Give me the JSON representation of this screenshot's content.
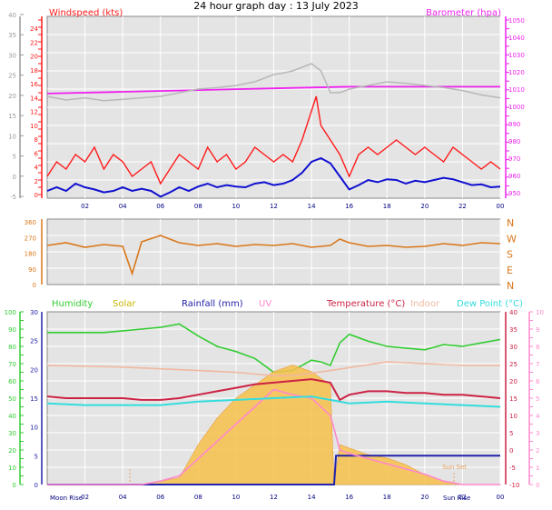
{
  "title": "24 hour graph day : 13 July 2023",
  "colors": {
    "gray_axis": "#9a9a9a",
    "windspeed": "#ff1a1a",
    "wind_avg": "#1010d0",
    "gust_gray": "#b8b8b8",
    "barometer": "#ee22ee",
    "direction": "#d9771a",
    "humidity": "#33cc33",
    "solar": "#c8b400",
    "rainfall": "#2222aa",
    "uv": "#ff88cc",
    "temperature": "#cc2244",
    "indoor": "#f0b8a0",
    "dewpoint": "#33dddd",
    "solar_fill": "#f7c14b"
  },
  "chart_data": [
    {
      "id": "wind",
      "type": "line",
      "title": "Windspeed (kts)",
      "title_right": "Barometer (hpa)",
      "x_ticks": [
        "02",
        "04",
        "06",
        "08",
        "10",
        "12",
        "14",
        "16",
        "18",
        "20",
        "22",
        "00"
      ],
      "left_outer_ticks": [
        "40",
        "35",
        "30",
        "25",
        "20",
        "15",
        "10",
        "5",
        "0",
        "-5"
      ],
      "left_inner_ticks": [
        "24",
        "22",
        "20",
        "18",
        "16",
        "14",
        "12",
        "10",
        "8",
        "6",
        "4",
        "2",
        "0"
      ],
      "right_ticks": [
        "1050",
        "1040",
        "1030",
        "1020",
        "1010",
        "1000",
        "990",
        "980",
        "970",
        "960",
        "950"
      ],
      "right_inner_ticks": [
        "980",
        "970",
        "960",
        "950"
      ],
      "ylim": [
        0,
        25
      ],
      "y2lim": [
        945,
        1051
      ],
      "series": [
        {
          "name": "Windspeed (kts)",
          "role": "speed",
          "x": [
            0,
            0.5,
            1,
            1.5,
            2,
            2.5,
            3,
            3.5,
            4,
            4.5,
            5,
            5.5,
            6,
            6.5,
            7,
            7.5,
            8,
            8.5,
            9,
            9.5,
            10,
            10.5,
            11,
            11.5,
            12,
            12.5,
            13,
            13.5,
            14,
            14.25,
            14.5,
            15,
            15.5,
            16,
            16.5,
            17,
            17.5,
            18,
            18.5,
            19,
            19.5,
            20,
            20.5,
            21,
            21.5,
            22,
            22.5,
            23,
            23.5,
            24
          ],
          "y": [
            3,
            5,
            4,
            6,
            5,
            7,
            4,
            6,
            5,
            3,
            4,
            5,
            2,
            4,
            6,
            5,
            4,
            7,
            5,
            6,
            4,
            5,
            7,
            6,
            5,
            6,
            5,
            8,
            12,
            14,
            10,
            8,
            6,
            3,
            6,
            7,
            6,
            7,
            8,
            7,
            6,
            7,
            6,
            5,
            7,
            6,
            5,
            4,
            5,
            4
          ]
        },
        {
          "name": "Average wind (kts)",
          "role": "avg",
          "x": [
            0,
            0.5,
            1,
            1.5,
            2,
            2.5,
            3,
            3.5,
            4,
            4.5,
            5,
            5.5,
            6,
            6.5,
            7,
            7.5,
            8,
            8.5,
            9,
            9.5,
            10,
            10.5,
            11,
            11.5,
            12,
            12.5,
            13,
            13.5,
            14,
            14.5,
            15,
            15.5,
            16,
            16.5,
            17,
            17.5,
            18,
            18.5,
            19,
            19.5,
            20,
            20.5,
            21,
            21.5,
            22,
            22.5,
            23,
            23.5,
            24
          ],
          "y": [
            1,
            1.5,
            1,
            2,
            1.5,
            1.2,
            0.8,
            1,
            1.5,
            1,
            1.3,
            1,
            0.2,
            0.8,
            1.5,
            1,
            1.6,
            2,
            1.5,
            1.8,
            1.6,
            1.5,
            2,
            2.2,
            1.8,
            2,
            2.5,
            3.5,
            5,
            5.5,
            4.8,
            3,
            1.2,
            1.8,
            2.5,
            2.2,
            2.6,
            2.5,
            2,
            2.4,
            2.2,
            2.5,
            2.8,
            2.6,
            2.2,
            1.8,
            1.9,
            1.5,
            1.6
          ]
        },
        {
          "name": "Barometer (hpa)",
          "role": "pressure",
          "x": [
            0,
            4,
            8,
            12,
            16,
            20,
            24
          ],
          "y": [
            1006,
            1007,
            1008,
            1009,
            1010,
            1010,
            1010
          ]
        },
        {
          "name": "Wind gust trace",
          "role": "gray",
          "x": [
            0,
            1,
            2,
            3,
            4,
            5,
            6,
            7,
            8,
            9,
            10,
            11,
            11.5,
            12,
            12.5,
            13,
            13.5,
            14,
            14.5,
            15,
            15.5,
            16,
            17,
            18,
            19,
            20,
            21,
            22,
            23,
            24
          ],
          "y": [
            14,
            13.5,
            13.8,
            13.4,
            13.6,
            13.8,
            14,
            14.5,
            15,
            15.2,
            15.5,
            16,
            16.5,
            17,
            17.2,
            17.5,
            18,
            18.5,
            17.5,
            14.5,
            14.5,
            15,
            15.5,
            16,
            15.8,
            15.5,
            15.2,
            14.8,
            14.2,
            13.8
          ]
        }
      ]
    },
    {
      "id": "direction",
      "type": "scatter",
      "left_ticks": [
        "360",
        "270",
        "180",
        "90",
        "0"
      ],
      "right_labels": [
        "N",
        "W",
        "S",
        "E",
        "N"
      ],
      "ylim": [
        0,
        360
      ],
      "series": [
        {
          "name": "Wind direction",
          "x": [
            0,
            1,
            2,
            3,
            4,
            4.5,
            5,
            6,
            6.5,
            7,
            8,
            9,
            10,
            11,
            12,
            13,
            14,
            15,
            15.5,
            16,
            17,
            18,
            19,
            20,
            21,
            22,
            23,
            24
          ],
          "y": [
            215,
            230,
            205,
            220,
            210,
            60,
            235,
            270,
            250,
            230,
            215,
            225,
            210,
            220,
            215,
            225,
            205,
            215,
            250,
            230,
            210,
            215,
            205,
            210,
            225,
            215,
            230,
            225
          ]
        }
      ]
    },
    {
      "id": "temperature",
      "type": "line",
      "legend": [
        "Humidity",
        "Solar",
        "Rainfall (mm)",
        "UV",
        "Temperature (°C)",
        "Indoor",
        "Dew Point (°C)"
      ],
      "humidity_ticks": [
        "100",
        "90",
        "80",
        "70",
        "60",
        "50",
        "40",
        "30",
        "20",
        "10",
        "0"
      ],
      "rain_ticks": [
        "30",
        "25",
        "20",
        "15",
        "10",
        "5",
        "0"
      ],
      "temp_ticks": [
        "40",
        "35",
        "30",
        "25",
        "20",
        "15",
        "10",
        "5",
        "0",
        "-5",
        "-10"
      ],
      "uv_ticks": [
        "10",
        "9",
        "8",
        "7",
        "6",
        "5",
        "4",
        "3",
        "2",
        "1",
        "0"
      ],
      "x_ticks": [
        "02",
        "04",
        "06",
        "08",
        "10",
        "12",
        "14",
        "16",
        "18",
        "20",
        "22",
        "00"
      ],
      "annotations": [
        "Moon Rise",
        "Sun Rise",
        "Sun Set"
      ],
      "templim": [
        -10,
        40
      ],
      "series": [
        {
          "name": "Humidity",
          "x": [
            0,
            1,
            2,
            3,
            4,
            5,
            6,
            7,
            8,
            9,
            10,
            11,
            12,
            13,
            14,
            14.5,
            15,
            15.5,
            16,
            17,
            18,
            19,
            20,
            21,
            22,
            23,
            24
          ],
          "y": [
            88,
            88,
            88,
            88,
            89,
            90,
            91,
            93,
            86,
            80,
            77,
            73,
            65,
            66,
            72,
            71,
            69,
            82,
            87,
            83,
            80,
            79,
            78,
            81,
            80,
            82,
            84
          ]
        },
        {
          "name": "Solar",
          "x": [
            0,
            4,
            5,
            6,
            7,
            8,
            9,
            10,
            11,
            12,
            13,
            14,
            15,
            15.2,
            15.5,
            16,
            17,
            18,
            19,
            20,
            21,
            22,
            24
          ],
          "y": [
            0,
            0,
            0,
            5,
            10,
            60,
            100,
            130,
            150,
            170,
            180,
            170,
            150,
            0,
            60,
            55,
            45,
            40,
            30,
            15,
            5,
            0,
            0
          ]
        },
        {
          "name": "Rainfall (mm)",
          "x": [
            0,
            15.2,
            15.3,
            24
          ],
          "y": [
            0,
            0,
            5,
            5
          ]
        },
        {
          "name": "UV",
          "x": [
            0,
            5,
            6,
            7,
            8,
            9,
            10,
            11,
            12,
            13,
            14,
            15,
            15.5,
            16,
            17,
            18,
            19,
            20,
            21,
            22,
            24
          ],
          "y": [
            0,
            0,
            0.2,
            0.5,
            1.5,
            2.5,
            3.5,
            4.5,
            5.5,
            5.2,
            5,
            4,
            2,
            1.8,
            1.5,
            1.2,
            0.9,
            0.6,
            0.2,
            0,
            0
          ]
        },
        {
          "name": "Temperature (°C)",
          "x": [
            0,
            1,
            2,
            3,
            4,
            5,
            6,
            7,
            8,
            9,
            10,
            11,
            12,
            13,
            14,
            14.5,
            15,
            15.5,
            16,
            17,
            18,
            19,
            20,
            21,
            22,
            23,
            24
          ],
          "y": [
            15.5,
            15,
            15,
            15,
            15,
            14.5,
            14.5,
            15,
            16,
            17,
            18,
            19,
            19.5,
            20,
            20.5,
            20,
            19.5,
            14.5,
            16,
            17,
            17,
            16.5,
            16.5,
            16,
            16,
            15.5,
            15
          ]
        },
        {
          "name": "Indoor",
          "x": [
            0,
            4,
            8,
            10,
            12,
            13,
            15,
            18,
            20,
            22,
            24
          ],
          "y": [
            24.5,
            24,
            23,
            22.5,
            21.5,
            21.5,
            23,
            25.5,
            25,
            24.5,
            24.5
          ]
        },
        {
          "name": "Dew Point (°C)",
          "x": [
            0,
            2,
            4,
            6,
            8,
            10,
            12,
            14,
            15,
            16,
            18,
            20,
            22,
            24
          ],
          "y": [
            13.5,
            13,
            13,
            13,
            14,
            14.5,
            15,
            15.5,
            14.5,
            13.5,
            14,
            13.5,
            13,
            12.5
          ]
        }
      ]
    }
  ]
}
